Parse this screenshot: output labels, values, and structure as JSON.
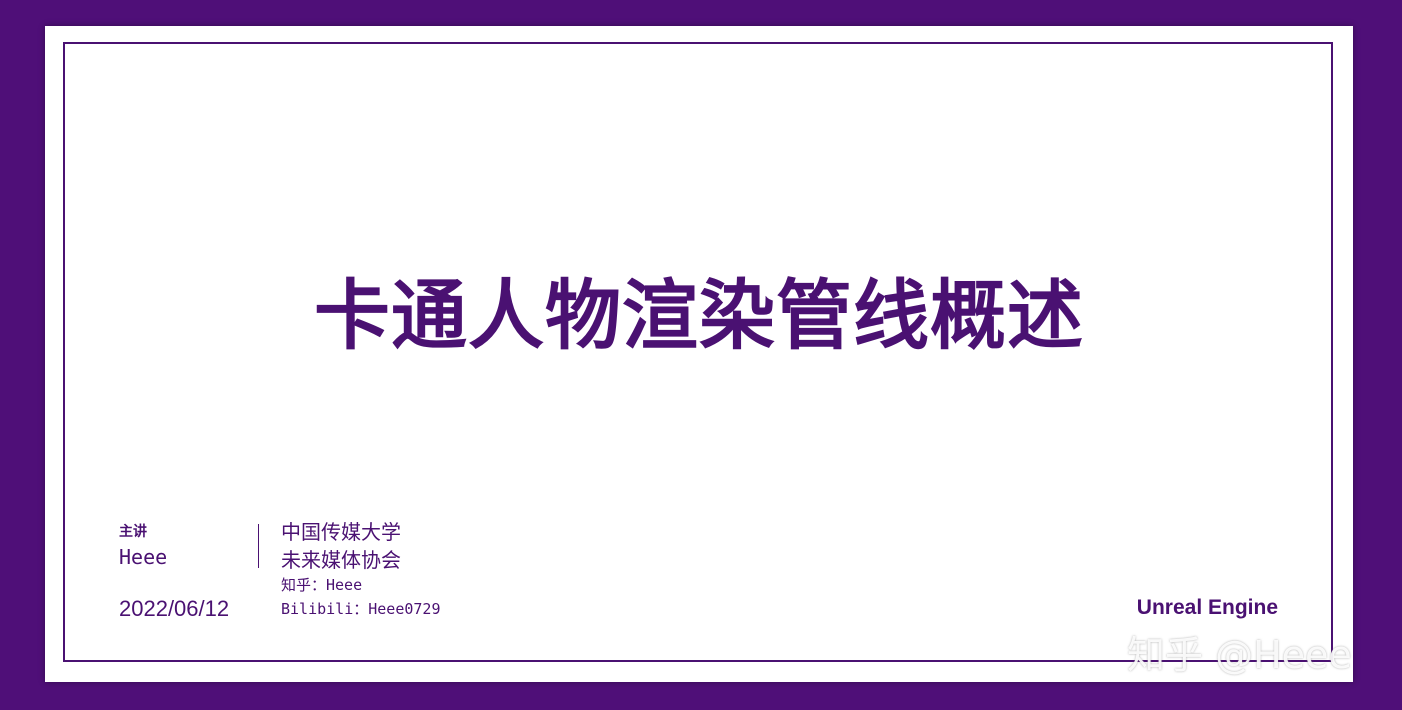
{
  "slide": {
    "title": "卡通人物渲染管线概述",
    "presenter_label": "主讲",
    "presenter_name": "Heee",
    "date": "2022/06/12",
    "org_line1": "中国传媒大学",
    "org_line2": "未来媒体协会",
    "zhihu": "知乎：Heee",
    "bilibili": "Bilibili：Heee0729",
    "engine": "Unreal Engine"
  },
  "watermark": "知乎 @Heee",
  "colors": {
    "background": "#4f0f78",
    "accent": "#4a1172",
    "slide": "#ffffff"
  }
}
